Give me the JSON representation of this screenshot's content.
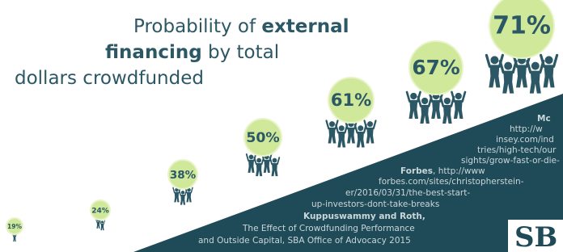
{
  "title": {
    "lines": [
      [
        {
          "text": "Probability of ",
          "bold": false
        },
        {
          "text": "external",
          "bold": true
        }
      ],
      [
        {
          "text": "financing",
          "bold": true
        },
        {
          "text": " by total",
          "bold": false
        }
      ],
      [
        {
          "text": "dollars crowdfunded",
          "bold": false
        }
      ]
    ]
  },
  "bubbles": [
    "19%",
    "24%",
    "38%",
    "50%",
    "61%",
    "67%",
    "71%"
  ],
  "sources": [
    [
      {
        "text": "Mc",
        "bold": true
      }
    ],
    [
      {
        "text": "http://w",
        "bold": false
      }
    ],
    [
      {
        "text": "insey.com/ind",
        "bold": false
      }
    ],
    [
      {
        "text": "tries/high-tech/our",
        "bold": false
      }
    ],
    [
      {
        "text": "sights/grow-fast-or-die-",
        "bold": false
      }
    ],
    [
      {
        "text": "Forbes",
        "bold": true
      },
      {
        "text": ", http://www",
        "bold": false
      }
    ],
    [
      {
        "text": "forbes.com/sites/christopherstein-",
        "bold": false
      }
    ],
    [
      {
        "text": "er/2016/03/31/the-best-start-",
        "bold": false
      }
    ],
    [
      {
        "text": "up-investors-dont-take-breaks",
        "bold": false
      }
    ],
    [
      {
        "text": "Kuppuswammy and Roth,",
        "bold": true
      }
    ],
    [
      {
        "text": "The Effect of Crowdfunding Performance",
        "bold": false
      }
    ],
    [
      {
        "text": "and Outside Capital, SBA Office of Advocacy 2015",
        "bold": false
      }
    ]
  ],
  "logo": "SB"
}
